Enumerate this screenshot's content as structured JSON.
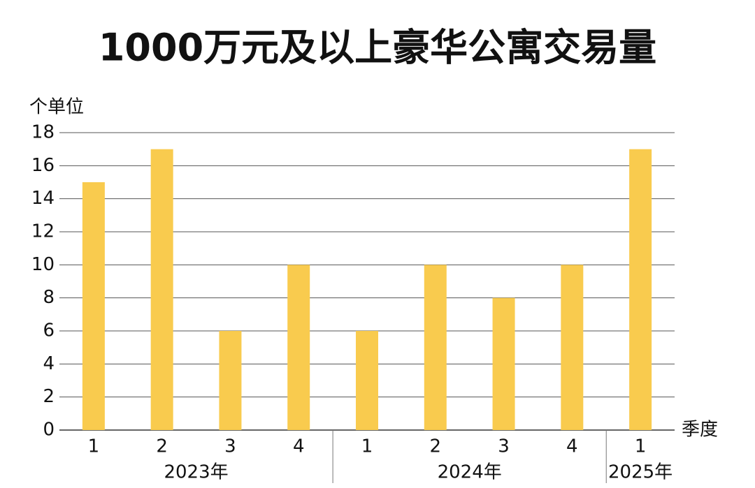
{
  "chart_data": {
    "type": "bar",
    "title": "1000万元及以上豪华公寓交易量",
    "y_label": "个单位",
    "x_label": "季度",
    "groups": [
      {
        "name": "2023年",
        "categories": [
          "1",
          "2",
          "3",
          "4"
        ],
        "values": [
          15,
          17,
          6,
          10
        ]
      },
      {
        "name": "2024年",
        "categories": [
          "1",
          "2",
          "3",
          "4"
        ],
        "values": [
          6,
          10,
          8,
          10
        ]
      },
      {
        "name": "2025年",
        "categories": [
          "1"
        ],
        "values": [
          17
        ]
      }
    ],
    "color": "#f9cb4e",
    "ylim": [
      0,
      18
    ],
    "yticks": [
      0,
      2,
      4,
      6,
      8,
      10,
      12,
      14,
      16,
      18
    ],
    "grid": true
  }
}
